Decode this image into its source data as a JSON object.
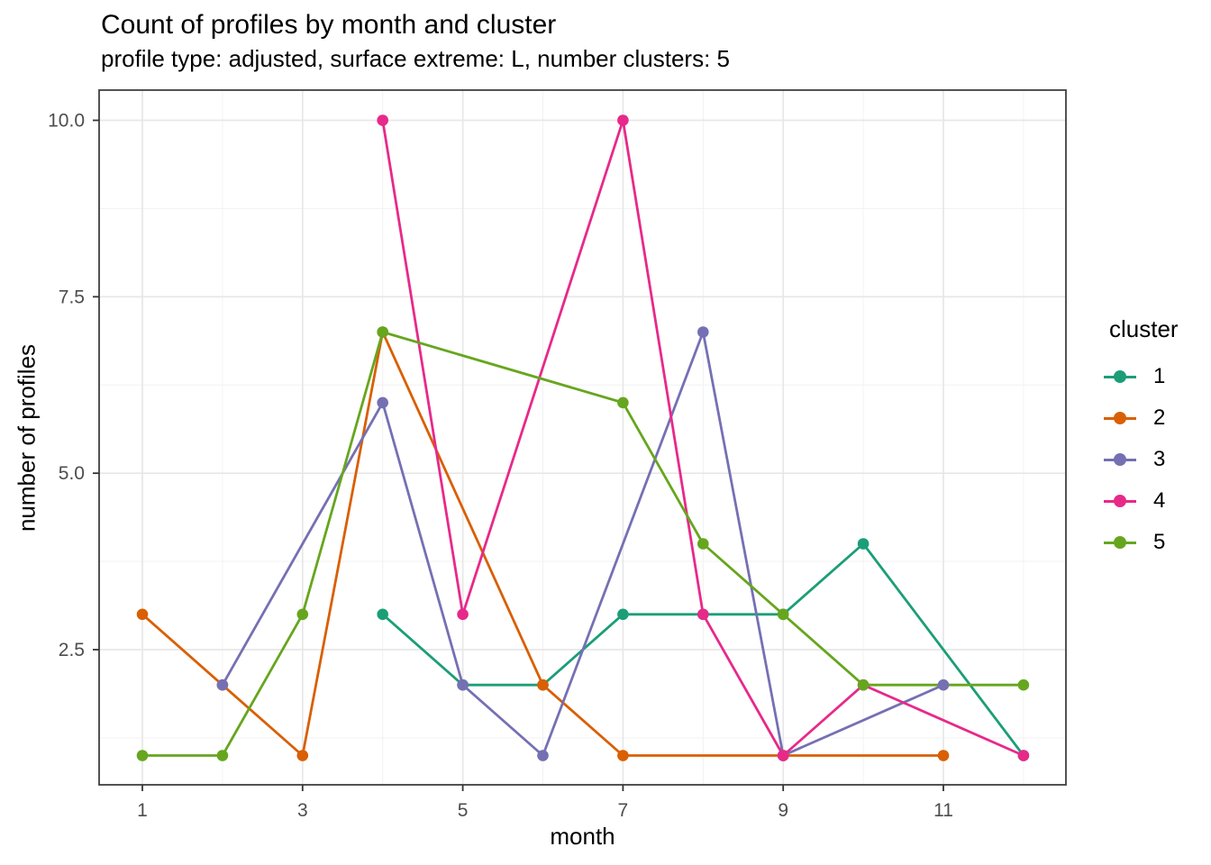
{
  "title": "Count of profiles by month and cluster",
  "subtitle": "profile type: adjusted, surface extreme: L, number clusters: 5",
  "axes": {
    "x_label": "month",
    "y_label": "number of profiles"
  },
  "legend": {
    "title": "cluster",
    "entries": [
      {
        "label": "1",
        "color": "#1B9E77"
      },
      {
        "label": "2",
        "color": "#D95F02"
      },
      {
        "label": "3",
        "color": "#7570B3"
      },
      {
        "label": "4",
        "color": "#E7298A"
      },
      {
        "label": "5",
        "color": "#66A61E"
      }
    ]
  },
  "style": {
    "background": "#FFFFFF",
    "grid_major_color": "#E7E7E7",
    "grid_minor_color": "#F3F3F3",
    "panel_border_color": "#404040",
    "tick_mark_color": "#333333",
    "tick_label_color": "#4D4D4D"
  },
  "chart_data": {
    "type": "line",
    "title": "Count of profiles by month and cluster",
    "subtitle": "profile type: adjusted, surface extreme: L, number clusters: 5",
    "xlabel": "month",
    "ylabel": "number of profiles",
    "xlim": [
      0.45,
      12.55
    ],
    "ylim": [
      0.55,
      10.45
    ],
    "grid": true,
    "legend_position": "right",
    "legend_title": "cluster",
    "x_ticks": [
      1,
      3,
      5,
      7,
      9,
      11
    ],
    "x_tick_labels": [
      "1",
      "3",
      "5",
      "7",
      "9",
      "11"
    ],
    "x_minor": [
      2,
      4,
      6,
      8,
      10,
      12
    ],
    "y_ticks": [
      2.5,
      5.0,
      7.5,
      10.0
    ],
    "y_tick_labels": [
      "2.5",
      "5.0",
      "7.5",
      "10.0"
    ],
    "y_minor": [
      1.25,
      3.75,
      6.25,
      8.75
    ],
    "series": [
      {
        "name": "1",
        "color": "#1B9E77",
        "points": [
          [
            4,
            3
          ],
          [
            5,
            2
          ],
          [
            6,
            2
          ],
          [
            7,
            3
          ],
          [
            8,
            3
          ],
          [
            9,
            3
          ],
          [
            10,
            4
          ],
          [
            12,
            1
          ]
        ]
      },
      {
        "name": "2",
        "color": "#D95F02",
        "points": [
          [
            1,
            3
          ],
          [
            2,
            2
          ],
          [
            3,
            1
          ],
          [
            4,
            7
          ],
          [
            6,
            2
          ],
          [
            7,
            1
          ],
          [
            9,
            1
          ],
          [
            11,
            1
          ]
        ]
      },
      {
        "name": "3",
        "color": "#7570B3",
        "points": [
          [
            2,
            2
          ],
          [
            4,
            6
          ],
          [
            5,
            2
          ],
          [
            6,
            1
          ],
          [
            8,
            7
          ],
          [
            9,
            1
          ],
          [
            11,
            2
          ]
        ]
      },
      {
        "name": "4",
        "color": "#E7298A",
        "points": [
          [
            4,
            10
          ],
          [
            5,
            3
          ],
          [
            7,
            10
          ],
          [
            8,
            3
          ],
          [
            9,
            1
          ],
          [
            10,
            2
          ],
          [
            12,
            1
          ]
        ]
      },
      {
        "name": "5",
        "color": "#66A61E",
        "points": [
          [
            1,
            1
          ],
          [
            2,
            1
          ],
          [
            3,
            3
          ],
          [
            4,
            7
          ],
          [
            7,
            6
          ],
          [
            8,
            4
          ],
          [
            9,
            3
          ],
          [
            10,
            2
          ],
          [
            12,
            2
          ]
        ]
      }
    ]
  }
}
